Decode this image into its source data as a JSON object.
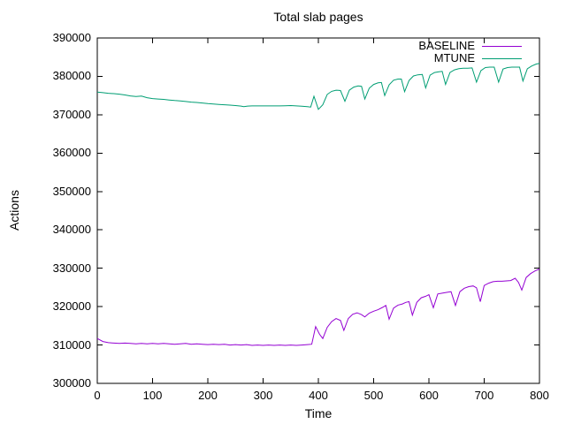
{
  "title": "Total slab pages",
  "colors": {
    "background": "#ffffff",
    "axis": "#000000",
    "text": "#000000",
    "baseline_line": "#9400d3",
    "mtune_line": "#009e73"
  },
  "chart_data": {
    "type": "line",
    "title": "Total slab pages",
    "xlabel": "Time",
    "ylabel": "Actions",
    "xlim": [
      0,
      800
    ],
    "ylim": [
      300000,
      390000
    ],
    "xticks": [
      0,
      100,
      200,
      300,
      400,
      500,
      600,
      700,
      800
    ],
    "yticks": [
      300000,
      310000,
      320000,
      330000,
      340000,
      350000,
      360000,
      370000,
      380000,
      390000
    ],
    "grid": false,
    "legend_position": "top-right-inside",
    "series": [
      {
        "name": "BASELINE",
        "color": "#9400d3",
        "points": [
          [
            0,
            311700
          ],
          [
            10,
            310900
          ],
          [
            20,
            310600
          ],
          [
            30,
            310500
          ],
          [
            40,
            310400
          ],
          [
            50,
            310500
          ],
          [
            60,
            310400
          ],
          [
            70,
            310300
          ],
          [
            80,
            310400
          ],
          [
            90,
            310300
          ],
          [
            100,
            310400
          ],
          [
            110,
            310300
          ],
          [
            120,
            310400
          ],
          [
            130,
            310300
          ],
          [
            140,
            310200
          ],
          [
            150,
            310300
          ],
          [
            160,
            310400
          ],
          [
            170,
            310200
          ],
          [
            180,
            310300
          ],
          [
            190,
            310200
          ],
          [
            200,
            310100
          ],
          [
            210,
            310200
          ],
          [
            220,
            310100
          ],
          [
            230,
            310200
          ],
          [
            240,
            310000
          ],
          [
            250,
            310100
          ],
          [
            260,
            310000
          ],
          [
            270,
            310100
          ],
          [
            280,
            309900
          ],
          [
            290,
            310000
          ],
          [
            300,
            309900
          ],
          [
            310,
            310000
          ],
          [
            320,
            309900
          ],
          [
            330,
            310000
          ],
          [
            340,
            309900
          ],
          [
            350,
            310000
          ],
          [
            360,
            309900
          ],
          [
            370,
            310000
          ],
          [
            380,
            310100
          ],
          [
            388,
            310200
          ],
          [
            395,
            314800
          ],
          [
            402,
            312800
          ],
          [
            408,
            311700
          ],
          [
            416,
            314600
          ],
          [
            424,
            316100
          ],
          [
            432,
            316900
          ],
          [
            440,
            316400
          ],
          [
            446,
            313800
          ],
          [
            454,
            316900
          ],
          [
            462,
            318000
          ],
          [
            470,
            318400
          ],
          [
            478,
            317900
          ],
          [
            484,
            317300
          ],
          [
            492,
            318300
          ],
          [
            500,
            318800
          ],
          [
            508,
            319200
          ],
          [
            516,
            319800
          ],
          [
            522,
            320300
          ],
          [
            528,
            316700
          ],
          [
            536,
            319600
          ],
          [
            544,
            320400
          ],
          [
            552,
            320700
          ],
          [
            558,
            321100
          ],
          [
            564,
            321300
          ],
          [
            570,
            317800
          ],
          [
            578,
            321100
          ],
          [
            586,
            322300
          ],
          [
            594,
            322700
          ],
          [
            600,
            323100
          ],
          [
            608,
            319700
          ],
          [
            616,
            323300
          ],
          [
            624,
            323500
          ],
          [
            632,
            323700
          ],
          [
            640,
            323900
          ],
          [
            648,
            320300
          ],
          [
            656,
            323900
          ],
          [
            664,
            324800
          ],
          [
            672,
            325200
          ],
          [
            680,
            325400
          ],
          [
            686,
            324900
          ],
          [
            693,
            321300
          ],
          [
            700,
            325500
          ],
          [
            708,
            326100
          ],
          [
            716,
            326500
          ],
          [
            724,
            326600
          ],
          [
            732,
            326600
          ],
          [
            740,
            326700
          ],
          [
            748,
            326800
          ],
          [
            756,
            327400
          ],
          [
            762,
            326300
          ],
          [
            768,
            324300
          ],
          [
            776,
            327600
          ],
          [
            784,
            328600
          ],
          [
            792,
            329300
          ],
          [
            800,
            329800
          ]
        ]
      },
      {
        "name": "MTUNE",
        "color": "#009e73",
        "points": [
          [
            0,
            375900
          ],
          [
            10,
            375750
          ],
          [
            20,
            375600
          ],
          [
            30,
            375500
          ],
          [
            40,
            375350
          ],
          [
            50,
            375150
          ],
          [
            60,
            374900
          ],
          [
            70,
            374750
          ],
          [
            80,
            374850
          ],
          [
            90,
            374450
          ],
          [
            100,
            374200
          ],
          [
            110,
            374100
          ],
          [
            120,
            374000
          ],
          [
            130,
            373850
          ],
          [
            140,
            373700
          ],
          [
            150,
            373600
          ],
          [
            160,
            373450
          ],
          [
            170,
            373300
          ],
          [
            180,
            373200
          ],
          [
            190,
            373050
          ],
          [
            200,
            372900
          ],
          [
            210,
            372800
          ],
          [
            220,
            372700
          ],
          [
            230,
            372600
          ],
          [
            240,
            372500
          ],
          [
            250,
            372400
          ],
          [
            260,
            372250
          ],
          [
            265,
            372100
          ],
          [
            272,
            372250
          ],
          [
            280,
            372300
          ],
          [
            290,
            372300
          ],
          [
            300,
            372300
          ],
          [
            310,
            372300
          ],
          [
            320,
            372300
          ],
          [
            330,
            372300
          ],
          [
            340,
            372350
          ],
          [
            350,
            372400
          ],
          [
            360,
            372300
          ],
          [
            370,
            372200
          ],
          [
            380,
            372100
          ],
          [
            386,
            372000
          ],
          [
            392,
            374800
          ],
          [
            400,
            371400
          ],
          [
            408,
            372600
          ],
          [
            416,
            375300
          ],
          [
            424,
            376100
          ],
          [
            432,
            376400
          ],
          [
            440,
            376300
          ],
          [
            448,
            373500
          ],
          [
            456,
            376400
          ],
          [
            464,
            377200
          ],
          [
            472,
            377500
          ],
          [
            478,
            377400
          ],
          [
            484,
            374100
          ],
          [
            492,
            376900
          ],
          [
            500,
            377900
          ],
          [
            508,
            378300
          ],
          [
            514,
            378400
          ],
          [
            520,
            375000
          ],
          [
            528,
            377800
          ],
          [
            536,
            379000
          ],
          [
            544,
            379300
          ],
          [
            550,
            379300
          ],
          [
            556,
            376000
          ],
          [
            564,
            378900
          ],
          [
            572,
            380100
          ],
          [
            580,
            380400
          ],
          [
            588,
            380500
          ],
          [
            594,
            377000
          ],
          [
            602,
            380300
          ],
          [
            610,
            381000
          ],
          [
            618,
            381200
          ],
          [
            624,
            381300
          ],
          [
            630,
            377900
          ],
          [
            638,
            381000
          ],
          [
            646,
            381700
          ],
          [
            654,
            382000
          ],
          [
            662,
            382100
          ],
          [
            670,
            382100
          ],
          [
            678,
            382200
          ],
          [
            686,
            378500
          ],
          [
            694,
            381500
          ],
          [
            702,
            382300
          ],
          [
            710,
            382400
          ],
          [
            718,
            382400
          ],
          [
            726,
            378500
          ],
          [
            734,
            381900
          ],
          [
            742,
            382300
          ],
          [
            750,
            382400
          ],
          [
            758,
            382400
          ],
          [
            764,
            382400
          ],
          [
            770,
            378800
          ],
          [
            778,
            382000
          ],
          [
            786,
            382700
          ],
          [
            794,
            383200
          ],
          [
            800,
            383400
          ]
        ]
      }
    ]
  }
}
